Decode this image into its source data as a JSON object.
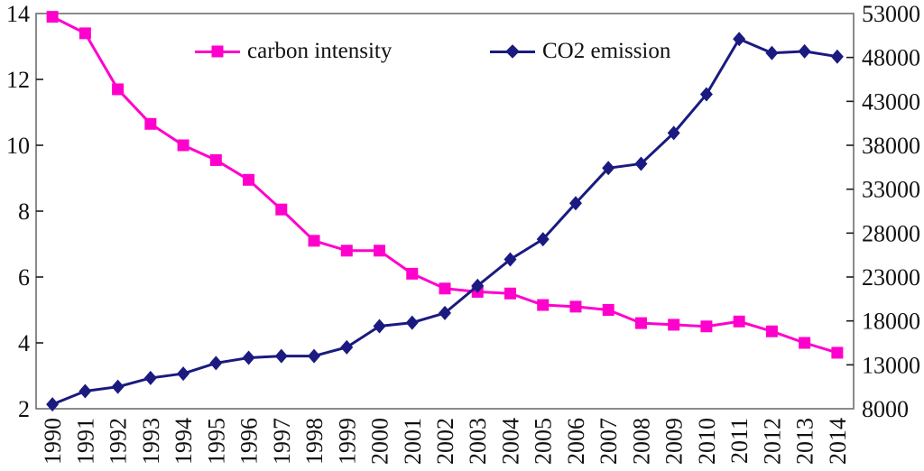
{
  "chart_data": {
    "type": "line",
    "title": "",
    "xlabel": "",
    "ylabel_left": "",
    "ylabel_right": "",
    "grid": false,
    "legend_position": "top-inside",
    "categories": [
      "1990",
      "1991",
      "1992",
      "1993",
      "1994",
      "1995",
      "1996",
      "1997",
      "1998",
      "1999",
      "2000",
      "2001",
      "2002",
      "2003",
      "2004",
      "2005",
      "2006",
      "2007",
      "2008",
      "2009",
      "2010",
      "2011",
      "2012",
      "2013",
      "2014"
    ],
    "left_axis": {
      "min": 2,
      "max": 14,
      "ticks": [
        2,
        4,
        6,
        8,
        10,
        12,
        14
      ]
    },
    "right_axis": {
      "min": 8000,
      "max": 53000,
      "ticks": [
        8000,
        13000,
        18000,
        23000,
        28000,
        33000,
        38000,
        43000,
        48000,
        53000
      ]
    },
    "series": [
      {
        "name": "carbon intensity",
        "axis": "left",
        "color": "#ff00cc",
        "marker": "square",
        "values": [
          13.9,
          13.4,
          11.7,
          10.65,
          10.0,
          9.55,
          8.95,
          8.05,
          7.1,
          6.8,
          6.8,
          6.1,
          5.65,
          5.55,
          5.5,
          5.15,
          5.1,
          5.0,
          4.6,
          4.55,
          4.5,
          4.65,
          4.35,
          4.0,
          3.7
        ]
      },
      {
        "name": "CO2 emission",
        "axis": "right",
        "color": "#1a1a80",
        "marker": "diamond",
        "values": [
          8500,
          10000,
          10500,
          11500,
          12000,
          13200,
          13800,
          14000,
          14000,
          15000,
          17400,
          17800,
          18900,
          22000,
          25000,
          27300,
          31400,
          35400,
          35900,
          39400,
          43800,
          50100,
          48500,
          48700,
          48100
        ]
      }
    ],
    "axis_colors": {
      "border": "#6e6e6e",
      "tick": "#1a1a1a",
      "label": "#111111"
    }
  }
}
